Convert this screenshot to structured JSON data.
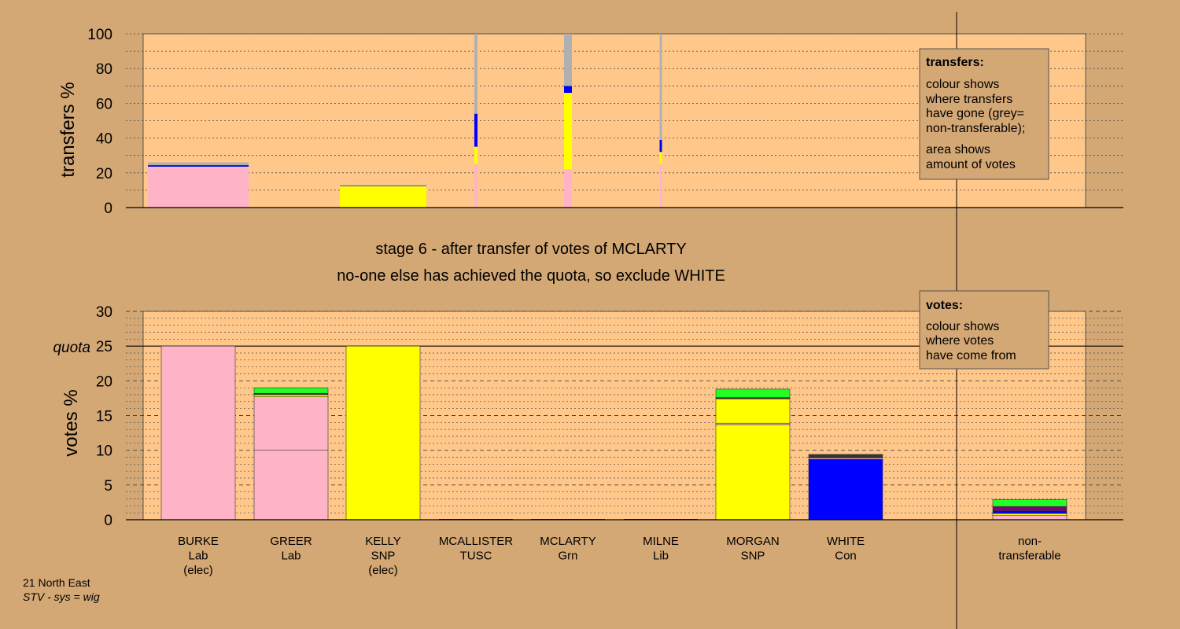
{
  "chart_data": [
    {
      "type": "bar",
      "id": "transfers",
      "ylabel": "transfers %",
      "ylim": [
        0,
        100
      ],
      "yticks": [
        "0",
        "20",
        "40",
        "60",
        "80",
        "100"
      ],
      "grid": "dotted",
      "stacked": true,
      "colors": {
        "Lab": "#ffb3c6",
        "SNP": "#ffff00",
        "Con": "#0000ff",
        "Grn": "#22ff22",
        "nontransferable": "#b0b0b0"
      },
      "bars": [
        {
          "candidate": "BURKE",
          "segments": [
            {
              "color": "#ffb3c6",
              "from": 0,
              "to": 23.2
            },
            {
              "color": "#ffff00",
              "from": 23.2,
              "to": 23.5
            },
            {
              "color": "#0000ff",
              "from": 23.5,
              "to": 24.4
            },
            {
              "color": "#b0b0b0",
              "from": 24.4,
              "to": 26
            }
          ]
        },
        {
          "candidate": "KELLY",
          "segments": [
            {
              "color": "#ffff00",
              "from": 0,
              "to": 12.3
            },
            {
              "color": "#0000ff",
              "from": 12.3,
              "to": 12.6
            },
            {
              "color": "#b0b0b0",
              "from": 12.6,
              "to": 13
            }
          ]
        },
        {
          "candidate": "MCALLISTER",
          "segments": [
            {
              "color": "#ffb3c6",
              "from": 0,
              "to": 25
            },
            {
              "color": "#ffff00",
              "from": 25,
              "to": 35
            },
            {
              "color": "#0000ff",
              "from": 35,
              "to": 54
            },
            {
              "color": "#b0b0b0",
              "from": 54,
              "to": 100
            }
          ]
        },
        {
          "candidate": "MCLARTY",
          "segments": [
            {
              "color": "#ffb3c6",
              "from": 0,
              "to": 22
            },
            {
              "color": "#ffff00",
              "from": 22,
              "to": 66
            },
            {
              "color": "#0000ff",
              "from": 66,
              "to": 70
            },
            {
              "color": "#b0b0b0",
              "from": 70,
              "to": 100
            }
          ]
        },
        {
          "candidate": "MILNE",
          "segments": [
            {
              "color": "#ffb3c6",
              "from": 0,
              "to": 25
            },
            {
              "color": "#ffff00",
              "from": 25,
              "to": 32
            },
            {
              "color": "#0000ff",
              "from": 32,
              "to": 39
            },
            {
              "color": "#b0b0b0",
              "from": 39,
              "to": 100
            }
          ]
        }
      ]
    },
    {
      "type": "bar",
      "id": "votes",
      "ylabel": "votes %",
      "ylim": [
        0,
        30
      ],
      "yticks": [
        "0",
        "5",
        "10",
        "15",
        "20",
        "25",
        "30"
      ],
      "quota": 25,
      "quota_label": "quota",
      "stacked": true,
      "categories": [
        {
          "name": "BURKE",
          "party": "Lab",
          "note": "(elec)"
        },
        {
          "name": "GREER",
          "party": "Lab",
          "note": ""
        },
        {
          "name": "KELLY",
          "party": "SNP",
          "note": "(elec)"
        },
        {
          "name": "MCALLISTER",
          "party": "TUSC",
          "note": ""
        },
        {
          "name": "MCLARTY",
          "party": "Grn",
          "note": ""
        },
        {
          "name": "MILNE",
          "party": "Lib",
          "note": ""
        },
        {
          "name": "MORGAN",
          "party": "SNP",
          "note": ""
        },
        {
          "name": "WHITE",
          "party": "Con",
          "note": ""
        },
        {
          "name": "non-",
          "party": "transferable",
          "note": ""
        }
      ],
      "bars": [
        {
          "candidate": "BURKE",
          "total": 25,
          "segments": [
            {
              "color": "#ffb3c6",
              "from": 0,
              "to": 25
            }
          ]
        },
        {
          "candidate": "GREER",
          "total": 19,
          "segments": [
            {
              "color": "#ffb3c6",
              "from": 0,
              "to": 10
            },
            {
              "color": "#ffb3c6",
              "from": 10,
              "to": 17.7
            },
            {
              "color": "#ffff00",
              "from": 17.7,
              "to": 18
            },
            {
              "color": "#333333",
              "from": 18,
              "to": 18.2
            },
            {
              "color": "#22ff22",
              "from": 18.2,
              "to": 19
            }
          ]
        },
        {
          "candidate": "KELLY",
          "total": 25,
          "segments": [
            {
              "color": "#ffff00",
              "from": 0,
              "to": 25
            }
          ]
        },
        {
          "candidate": "MCALLISTER",
          "total": 0,
          "segments": []
        },
        {
          "candidate": "MCLARTY",
          "total": 0,
          "segments": []
        },
        {
          "candidate": "MILNE",
          "total": 0,
          "segments": []
        },
        {
          "candidate": "MORGAN",
          "total": 18.8,
          "segments": [
            {
              "color": "#ffff00",
              "from": 0,
              "to": 13.7
            },
            {
              "color": "#ffb3c6",
              "from": 13.7,
              "to": 13.9
            },
            {
              "color": "#ffff00",
              "from": 13.9,
              "to": 17.4
            },
            {
              "color": "#333333",
              "from": 17.4,
              "to": 17.6
            },
            {
              "color": "#22ff22",
              "from": 17.6,
              "to": 18.8
            }
          ]
        },
        {
          "candidate": "WHITE",
          "total": 9.4,
          "segments": [
            {
              "color": "#0000ff",
              "from": 0,
              "to": 8.7
            },
            {
              "color": "#ffb3c6",
              "from": 8.7,
              "to": 8.9
            },
            {
              "color": "#333333",
              "from": 8.9,
              "to": 9.4
            }
          ]
        },
        {
          "candidate": "non-transferable",
          "total": 2.9,
          "segments": [
            {
              "color": "#ffb3c6",
              "from": 0,
              "to": 0.6
            },
            {
              "color": "#ffff00",
              "from": 0.6,
              "to": 0.9
            },
            {
              "color": "#0000ff",
              "from": 0.9,
              "to": 1.3
            },
            {
              "color": "#800080",
              "from": 1.3,
              "to": 1.9
            },
            {
              "color": "#22ff22",
              "from": 1.9,
              "to": 2.9
            }
          ]
        }
      ]
    }
  ],
  "stage_title": "stage 6 - after transfer of votes of MCLARTY",
  "stage_subtitle": "no-one else has achieved the quota, so exclude WHITE",
  "legend_transfers": {
    "title": "transfers:",
    "line1": "colour shows",
    "line2": "where transfers",
    "line3": "have gone (grey=",
    "line4": "non-transferable);",
    "line5": "area shows",
    "line6": "amount of votes"
  },
  "legend_votes": {
    "title": "votes:",
    "line1": "colour shows",
    "line2": "where votes",
    "line3": "have come from"
  },
  "footer": {
    "region": "21 North East",
    "system": "STV - sys = wig"
  },
  "colors": {
    "background": "#d4a875",
    "plot_bg": "#ffc88a"
  }
}
